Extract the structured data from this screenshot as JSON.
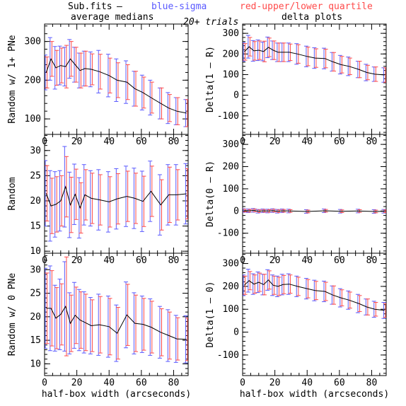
{
  "header": {
    "file": "Sub.fits",
    "dash": "–",
    "blue": "blue-sigma",
    "red": "red-upper/lower quartile",
    "left_title": "average medians",
    "center_title": "20+ trials",
    "right_title": "delta plots",
    "blue_color": "#5a5aff",
    "red_color": "#ff4a4a"
  },
  "chart_data": [
    {
      "type": "line",
      "panel": "top-left",
      "title": "",
      "xlabel": "",
      "ylabel": "Random w/ 1+ PNe",
      "xlim": [
        0,
        89
      ],
      "ylim": [
        60,
        345
      ],
      "xticks": [
        0,
        20,
        40,
        60,
        80
      ],
      "yticks": [
        100,
        200,
        300
      ],
      "x": [
        1,
        4,
        7,
        10,
        13,
        16,
        19,
        22,
        25,
        29,
        34,
        40,
        45,
        51,
        56,
        61,
        66,
        72,
        77,
        82,
        88
      ],
      "y": [
        220,
        255,
        232,
        238,
        235,
        255,
        240,
        225,
        230,
        228,
        222,
        212,
        200,
        195,
        178,
        168,
        155,
        140,
        128,
        120,
        115
      ],
      "blue_err": [
        45,
        55,
        55,
        50,
        50,
        50,
        45,
        45,
        45,
        45,
        55,
        55,
        55,
        55,
        45,
        45,
        45,
        40,
        40,
        35,
        35
      ],
      "red_err": [
        40,
        45,
        45,
        45,
        55,
        45,
        45,
        45,
        45,
        40,
        45,
        45,
        45,
        45,
        45,
        40,
        40,
        40,
        35,
        35,
        35
      ]
    },
    {
      "type": "line",
      "panel": "top-right",
      "title": "",
      "xlabel": "",
      "ylabel": "Delta(1 – R)",
      "xlim": [
        0,
        89
      ],
      "ylim": [
        -190,
        345
      ],
      "xticks": [
        0,
        20,
        40,
        60,
        80
      ],
      "yticks": [
        -100,
        0,
        100,
        200,
        300
      ],
      "x": [
        1,
        4,
        7,
        10,
        13,
        16,
        19,
        22,
        25,
        29,
        34,
        40,
        45,
        51,
        56,
        61,
        66,
        72,
        77,
        82,
        88
      ],
      "y": [
        210,
        235,
        215,
        218,
        212,
        232,
        218,
        208,
        208,
        208,
        200,
        188,
        180,
        178,
        162,
        148,
        140,
        125,
        110,
        102,
        98
      ],
      "blue_err": [
        45,
        55,
        50,
        50,
        45,
        50,
        45,
        45,
        45,
        45,
        50,
        50,
        50,
        50,
        45,
        45,
        45,
        40,
        40,
        35,
        35
      ],
      "red_err": [
        40,
        45,
        45,
        45,
        50,
        45,
        45,
        45,
        45,
        40,
        45,
        45,
        45,
        45,
        45,
        40,
        40,
        40,
        35,
        35,
        35
      ]
    },
    {
      "type": "line",
      "panel": "middle-left",
      "title": "",
      "xlabel": "",
      "ylabel": "Random",
      "xlim": [
        0,
        89
      ],
      "ylim": [
        9.6,
        33.2
      ],
      "xticks": [
        0,
        20,
        40,
        60,
        80
      ],
      "yticks": [
        10,
        15,
        20,
        25,
        30
      ],
      "x": [
        1,
        4,
        7,
        10,
        13,
        16,
        19,
        22,
        25,
        29,
        34,
        40,
        45,
        51,
        56,
        61,
        66,
        72,
        77,
        82,
        88
      ],
      "y": [
        21.5,
        19.0,
        19.3,
        20.0,
        22.8,
        19.2,
        21.3,
        18.6,
        21.2,
        20.5,
        20.2,
        19.8,
        20.4,
        20.9,
        20.5,
        19.9,
        21.9,
        19.2,
        21.2,
        21.2,
        21.4
      ],
      "blue_err": [
        6.5,
        7.0,
        6.5,
        6.0,
        8.0,
        6.5,
        6.0,
        6.0,
        6.0,
        5.5,
        6.0,
        6.0,
        6.0,
        6.0,
        6.0,
        6.0,
        6.0,
        6.0,
        6.0,
        6.0,
        6.0
      ],
      "red_err": [
        5.5,
        5.5,
        5.5,
        5.0,
        6.0,
        5.5,
        5.0,
        5.0,
        5.0,
        5.0,
        5.0,
        5.0,
        5.0,
        5.0,
        5.0,
        5.0,
        5.0,
        5.0,
        5.5,
        5.0,
        5.0
      ]
    },
    {
      "type": "line",
      "panel": "middle-right",
      "title": "",
      "xlabel": "",
      "ylabel": "Delta(0 – R)",
      "xlim": [
        0,
        89
      ],
      "ylim": [
        -190,
        345
      ],
      "xticks": [
        0,
        20,
        40,
        60,
        80
      ],
      "yticks": [
        -100,
        0,
        100,
        200,
        300
      ],
      "x": [
        1,
        4,
        7,
        10,
        13,
        16,
        19,
        22,
        25,
        29,
        40,
        51,
        61,
        72,
        82,
        88
      ],
      "y": [
        2,
        1,
        3,
        -1,
        1,
        0,
        2,
        -1,
        1,
        0,
        -2,
        1,
        -1,
        0,
        -2,
        -1
      ],
      "blue_err": [
        8,
        8,
        8,
        8,
        8,
        8,
        8,
        8,
        8,
        8,
        8,
        8,
        8,
        8,
        8,
        8
      ],
      "red_err": [
        6,
        6,
        6,
        6,
        6,
        6,
        6,
        6,
        6,
        6,
        6,
        6,
        6,
        6,
        6,
        6
      ]
    },
    {
      "type": "line",
      "panel": "bottom-left",
      "title": "",
      "xlabel": "half-box width (arcseconds)",
      "ylabel": "Random w/ 0 PNe",
      "xlim": [
        0,
        89
      ],
      "ylim": [
        7.5,
        33.5
      ],
      "xticks": [
        0,
        20,
        40,
        60,
        80
      ],
      "yticks": [
        10,
        15,
        20,
        25,
        30
      ],
      "x": [
        1,
        4,
        7,
        10,
        13,
        16,
        19,
        22,
        25,
        29,
        34,
        40,
        45,
        51,
        56,
        61,
        66,
        72,
        77,
        82,
        88
      ],
      "y": [
        21.8,
        21.8,
        19.7,
        20.5,
        22.2,
        18.6,
        20.3,
        19.3,
        18.8,
        18.1,
        18.3,
        17.9,
        16.5,
        20.4,
        18.6,
        18.4,
        17.8,
        16.7,
        16.0,
        15.3,
        15.2
      ],
      "blue_err": [
        8.5,
        9.0,
        7.0,
        7.5,
        9.5,
        6.5,
        7.0,
        6.5,
        6.5,
        6.0,
        6.5,
        6.5,
        6.0,
        7.0,
        6.5,
        6.0,
        6.0,
        5.5,
        5.5,
        5.0,
        5.0
      ],
      "red_err": [
        7.5,
        8.0,
        6.5,
        6.5,
        10.5,
        6.0,
        6.0,
        6.0,
        6.0,
        5.5,
        6.0,
        6.0,
        5.5,
        6.5,
        6.0,
        5.5,
        5.5,
        5.0,
        5.0,
        4.5,
        4.5
      ]
    },
    {
      "type": "line",
      "panel": "bottom-right",
      "title": "",
      "xlabel": "half-box width (arcseconds)",
      "ylabel": "Delta(1 – 0)",
      "xlim": [
        0,
        89
      ],
      "ylim": [
        -190,
        345
      ],
      "xticks": [
        0,
        20,
        40,
        60,
        80
      ],
      "yticks": [
        -100,
        0,
        100,
        200,
        300
      ],
      "x": [
        1,
        4,
        7,
        10,
        13,
        16,
        19,
        22,
        25,
        29,
        34,
        40,
        45,
        51,
        56,
        61,
        66,
        72,
        77,
        82,
        88
      ],
      "y": [
        205,
        225,
        210,
        218,
        208,
        228,
        205,
        200,
        208,
        210,
        200,
        190,
        182,
        178,
        162,
        150,
        140,
        125,
        110,
        100,
        95
      ],
      "blue_err": [
        45,
        50,
        45,
        45,
        45,
        45,
        45,
        45,
        45,
        45,
        45,
        45,
        45,
        45,
        40,
        40,
        40,
        40,
        35,
        35,
        35
      ],
      "red_err": [
        40,
        40,
        40,
        40,
        45,
        40,
        40,
        40,
        40,
        40,
        40,
        40,
        40,
        40,
        40,
        35,
        35,
        35,
        35,
        30,
        30
      ]
    }
  ]
}
